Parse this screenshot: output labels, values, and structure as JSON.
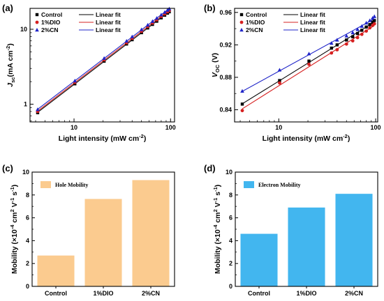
{
  "chart_data": [
    {
      "panel": "(a)",
      "type": "scatter",
      "xlabel_main": "Light intensity (mW cm",
      "xlabel_sup": "-2",
      "xlabel_end": ")",
      "ylabel_main": "J",
      "ylabel_sub": "sc",
      "ylabel_rest": "(mA cm",
      "ylabel_sup": "-2",
      "ylabel_end": ")",
      "xscale": "log",
      "yscale": "log",
      "xlim": [
        3.5,
        110
      ],
      "ylim": [
        0.58,
        19
      ],
      "xticks": [
        {
          "v": 10,
          "label": "10"
        },
        {
          "v": 100,
          "label": "100"
        }
      ],
      "yticks": [
        {
          "v": 1,
          "label": "1"
        },
        {
          "v": 10,
          "label": "10"
        }
      ],
      "legend": [
        "Control",
        "1%DIO",
        "2%CN"
      ],
      "fit_label": "Linear fit",
      "x": [
        4.2,
        10.2,
        20.5,
        35,
        40,
        50,
        58,
        65,
        72,
        80,
        87,
        93,
        97
      ],
      "series": [
        {
          "name": "Control",
          "color": "#000000",
          "marker": "square",
          "values": [
            0.77,
            1.87,
            3.75,
            6.35,
            7.25,
            9.0,
            10.4,
            11.6,
            12.8,
            14.2,
            15.4,
            16.4,
            17.1
          ]
        },
        {
          "name": "1%DIO",
          "color": "#d62020",
          "marker": "circle",
          "values": [
            0.8,
            1.95,
            3.9,
            6.6,
            7.55,
            9.4,
            10.85,
            12.1,
            13.35,
            14.8,
            16.0,
            17.1,
            17.8
          ]
        },
        {
          "name": "2%CN",
          "color": "#1f24c8",
          "marker": "triangle",
          "values": [
            0.85,
            2.05,
            4.1,
            6.95,
            7.95,
            9.9,
            11.4,
            12.75,
            14.05,
            15.55,
            16.85,
            18.0,
            18.75
          ]
        }
      ]
    },
    {
      "panel": "(b)",
      "type": "scatter",
      "xlabel_main": "Light intensity (mW cm",
      "xlabel_sup": "-2",
      "xlabel_end": ")",
      "ylabel_main": "V",
      "ylabel_sub": "OC",
      "ylabel_rest": " (V)",
      "xscale": "log",
      "yscale": "linear",
      "xlim": [
        3.5,
        105
      ],
      "ylim": [
        0.825,
        0.965
      ],
      "xticks": [
        {
          "v": 10,
          "label": "10"
        },
        {
          "v": 100,
          "label": "100"
        }
      ],
      "yticks": [
        {
          "v": 0.84,
          "label": "0.84"
        },
        {
          "v": 0.88,
          "label": "0.88"
        },
        {
          "v": 0.92,
          "label": "0.92"
        },
        {
          "v": 0.96,
          "label": "0.96"
        }
      ],
      "legend": [
        "Control",
        "1%DIO",
        "2%CN"
      ],
      "fit_label": "Linear fit",
      "x": [
        4.2,
        10.2,
        20.5,
        35,
        40,
        50,
        58,
        65,
        72,
        80,
        87,
        93,
        97
      ],
      "series": [
        {
          "name": "Control",
          "color": "#000000",
          "marker": "square",
          "values": [
            0.847,
            0.876,
            0.9,
            0.916,
            0.92,
            0.926,
            0.93,
            0.934,
            0.938,
            0.942,
            0.945,
            0.948,
            0.95
          ]
        },
        {
          "name": "1%DIO",
          "color": "#d62020",
          "marker": "circle",
          "values": [
            0.839,
            0.873,
            0.896,
            0.91,
            0.914,
            0.921,
            0.925,
            0.929,
            0.933,
            0.937,
            0.941,
            0.944,
            0.946
          ]
        },
        {
          "name": "2%CN",
          "color": "#1f24c8",
          "marker": "triangle",
          "values": [
            0.863,
            0.889,
            0.909,
            0.922,
            0.926,
            0.931,
            0.935,
            0.939,
            0.943,
            0.947,
            0.95,
            0.953,
            0.955
          ]
        }
      ]
    },
    {
      "panel": "(c)",
      "type": "bar",
      "categories": [
        "Control",
        "1%DIO",
        "2%CN"
      ],
      "values": [
        2.7,
        7.65,
        9.3
      ],
      "ylim": [
        0,
        10
      ],
      "yticks": [
        0,
        2,
        4,
        6,
        8,
        10
      ],
      "legend": "Hole Mobility",
      "color": "#fbcb8f",
      "ylabel": "Mobility (×10<sup>-4</sup> cm<sup>2</sup> V<sup>-1</sup> s<sup>-1</sup>)"
    },
    {
      "panel": "(d)",
      "type": "bar",
      "categories": [
        "Control",
        "1%DIO",
        "2%CN"
      ],
      "values": [
        4.6,
        6.9,
        8.1
      ],
      "ylim": [
        0,
        10
      ],
      "yticks": [
        0,
        2,
        4,
        6,
        8,
        10
      ],
      "legend": "Electron Mobility",
      "color": "#42b6ef",
      "ylabel": "Mobility (×10<sup>-4</sup> cm<sup>2</sup> V<sup>-1</sup> s<sup>-1</sup>)"
    }
  ]
}
